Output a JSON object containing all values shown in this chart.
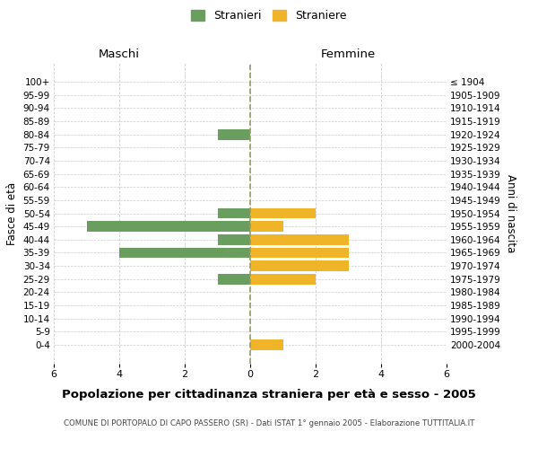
{
  "age_groups": [
    "100+",
    "95-99",
    "90-94",
    "85-89",
    "80-84",
    "75-79",
    "70-74",
    "65-69",
    "60-64",
    "55-59",
    "50-54",
    "45-49",
    "40-44",
    "35-39",
    "30-34",
    "25-29",
    "20-24",
    "15-19",
    "10-14",
    "5-9",
    "0-4"
  ],
  "birth_years": [
    "≤ 1904",
    "1905-1909",
    "1910-1914",
    "1915-1919",
    "1920-1924",
    "1925-1929",
    "1930-1934",
    "1935-1939",
    "1940-1944",
    "1945-1949",
    "1950-1954",
    "1955-1959",
    "1960-1964",
    "1965-1969",
    "1970-1974",
    "1975-1979",
    "1980-1984",
    "1985-1989",
    "1990-1994",
    "1995-1999",
    "2000-2004"
  ],
  "maschi": [
    0,
    0,
    0,
    0,
    1,
    0,
    0,
    0,
    0,
    0,
    1,
    5,
    1,
    4,
    0,
    1,
    0,
    0,
    0,
    0,
    0
  ],
  "femmine": [
    0,
    0,
    0,
    0,
    0,
    0,
    0,
    0,
    0,
    0,
    2,
    1,
    3,
    3,
    3,
    2,
    0,
    0,
    0,
    0,
    1
  ],
  "color_maschi": "#6a9e5f",
  "color_femmine": "#f0b429",
  "title": "Popolazione per cittadinanza straniera per età e sesso - 2005",
  "subtitle": "COMUNE DI PORTOPALO DI CAPO PASSERO (SR) - Dati ISTAT 1° gennaio 2005 - Elaborazione TUTTITALIA.IT",
  "xlabel_left": "Maschi",
  "xlabel_right": "Femmine",
  "ylabel_left": "Fasce di età",
  "ylabel_right": "Anni di nascita",
  "legend_maschi": "Stranieri",
  "legend_femmine": "Straniere",
  "xlim": 6,
  "background_color": "#ffffff",
  "grid_color": "#cccccc",
  "bar_height": 0.8
}
